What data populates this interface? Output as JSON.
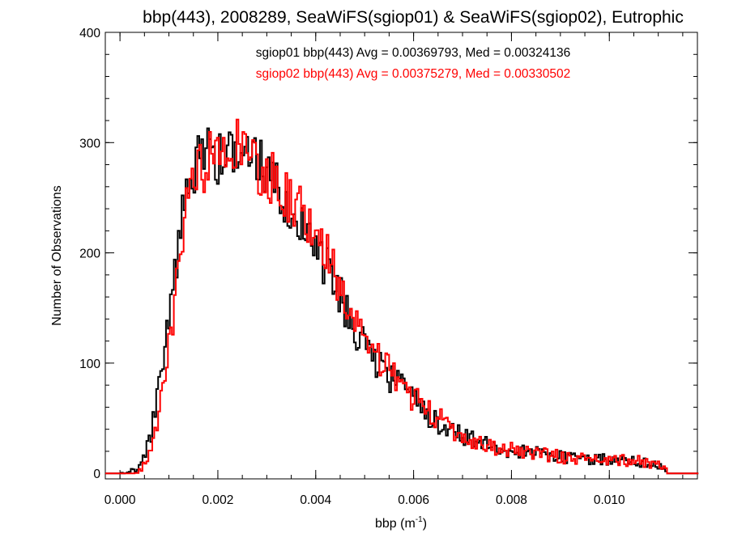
{
  "chart_data": {
    "type": "line",
    "title": "bbp(443), 2008289, SeaWiFS(sgiop01) & SeaWiFS(sgiop02), Eutrophic",
    "xlabel_base": "bbp (m",
    "xlabel_sup": "-1",
    "xlabel_end": ")",
    "ylabel": "Number of Observations",
    "xlim": [
      -0.0003,
      0.0118
    ],
    "ylim": [
      -5,
      400
    ],
    "xticks": [
      0.0,
      0.002,
      0.004,
      0.006,
      0.008,
      0.01
    ],
    "xtick_labels": [
      "0.000",
      "0.002",
      "0.004",
      "0.006",
      "0.008",
      "0.010"
    ],
    "yticks": [
      0,
      100,
      200,
      300,
      400
    ],
    "ytick_labels": [
      "0",
      "100",
      "200",
      "300",
      "400"
    ],
    "grid": false,
    "legend_placement": "top-center",
    "bin_width": 4e-05,
    "series": [
      {
        "name": "sgiop01 bbp(443) Avg = 0.00369793, Med = 0.00324136",
        "color": "#000000",
        "points": [
          [
            0.0,
            0
          ],
          [
            0.0002,
            1
          ],
          [
            0.0004,
            6
          ],
          [
            0.0006,
            28
          ],
          [
            0.0008,
            75
          ],
          [
            0.001,
            140
          ],
          [
            0.0012,
            215
          ],
          [
            0.0014,
            262
          ],
          [
            0.0016,
            285
          ],
          [
            0.0018,
            288
          ],
          [
            0.002,
            287
          ],
          [
            0.0022,
            285
          ],
          [
            0.0024,
            283
          ],
          [
            0.0026,
            282
          ],
          [
            0.0028,
            279
          ],
          [
            0.003,
            270
          ],
          [
            0.0032,
            260
          ],
          [
            0.0034,
            248
          ],
          [
            0.0036,
            238
          ],
          [
            0.0038,
            228
          ],
          [
            0.004,
            212
          ],
          [
            0.0042,
            190
          ],
          [
            0.0044,
            168
          ],
          [
            0.0046,
            150
          ],
          [
            0.0048,
            132
          ],
          [
            0.005,
            118
          ],
          [
            0.0052,
            105
          ],
          [
            0.0054,
            95
          ],
          [
            0.0056,
            84
          ],
          [
            0.0058,
            74
          ],
          [
            0.006,
            65
          ],
          [
            0.0062,
            56
          ],
          [
            0.0064,
            50
          ],
          [
            0.0066,
            44
          ],
          [
            0.0068,
            38
          ],
          [
            0.007,
            34
          ],
          [
            0.0072,
            30
          ],
          [
            0.0074,
            27
          ],
          [
            0.0076,
            24
          ],
          [
            0.0078,
            22
          ],
          [
            0.008,
            20
          ],
          [
            0.0082,
            19
          ],
          [
            0.0084,
            18
          ],
          [
            0.0086,
            17
          ],
          [
            0.0088,
            16
          ],
          [
            0.009,
            15
          ],
          [
            0.0092,
            14
          ],
          [
            0.0094,
            13
          ],
          [
            0.0096,
            13
          ],
          [
            0.0098,
            12
          ],
          [
            0.01,
            12
          ],
          [
            0.0102,
            11
          ],
          [
            0.0104,
            11
          ],
          [
            0.0106,
            10
          ],
          [
            0.0108,
            9
          ],
          [
            0.011,
            8
          ],
          [
            0.0111,
            3
          ],
          [
            0.0112,
            0
          ]
        ]
      },
      {
        "name": "sgiop02 bbp(443) Avg = 0.00375279, Med = 0.00330502",
        "color": "#ff0000",
        "points": [
          [
            0.0,
            0
          ],
          [
            0.0002,
            0
          ],
          [
            0.0004,
            2
          ],
          [
            0.0006,
            15
          ],
          [
            0.0008,
            55
          ],
          [
            0.001,
            115
          ],
          [
            0.0012,
            190
          ],
          [
            0.0014,
            248
          ],
          [
            0.0016,
            276
          ],
          [
            0.0018,
            283
          ],
          [
            0.002,
            285
          ],
          [
            0.0022,
            286
          ],
          [
            0.0024,
            285
          ],
          [
            0.0026,
            283
          ],
          [
            0.0028,
            279
          ],
          [
            0.003,
            272
          ],
          [
            0.0032,
            264
          ],
          [
            0.0034,
            254
          ],
          [
            0.0036,
            243
          ],
          [
            0.0038,
            233
          ],
          [
            0.004,
            220
          ],
          [
            0.0042,
            200
          ],
          [
            0.0044,
            178
          ],
          [
            0.0046,
            160
          ],
          [
            0.0048,
            140
          ],
          [
            0.005,
            125
          ],
          [
            0.0052,
            112
          ],
          [
            0.0054,
            100
          ],
          [
            0.0056,
            88
          ],
          [
            0.0058,
            78
          ],
          [
            0.006,
            68
          ],
          [
            0.0062,
            60
          ],
          [
            0.0064,
            53
          ],
          [
            0.0066,
            46
          ],
          [
            0.0068,
            40
          ],
          [
            0.007,
            35
          ],
          [
            0.0072,
            31
          ],
          [
            0.0074,
            28
          ],
          [
            0.0076,
            25
          ],
          [
            0.0078,
            23
          ],
          [
            0.008,
            21
          ],
          [
            0.0082,
            19
          ],
          [
            0.0084,
            18
          ],
          [
            0.0086,
            17
          ],
          [
            0.0088,
            16
          ],
          [
            0.009,
            15
          ],
          [
            0.0092,
            14
          ],
          [
            0.0094,
            14
          ],
          [
            0.0096,
            13
          ],
          [
            0.0098,
            13
          ],
          [
            0.01,
            12
          ],
          [
            0.0102,
            12
          ],
          [
            0.0104,
            11
          ],
          [
            0.0106,
            11
          ],
          [
            0.0108,
            10
          ],
          [
            0.011,
            9
          ],
          [
            0.0111,
            6
          ],
          [
            0.0112,
            0
          ]
        ]
      }
    ],
    "peak_spikes": [
      {
        "series": 1,
        "x": 0.00242,
        "y": 321
      },
      {
        "series": 0,
        "x": 0.0029,
        "y": 302
      },
      {
        "series": 1,
        "x": 0.00198,
        "y": 302
      }
    ]
  }
}
